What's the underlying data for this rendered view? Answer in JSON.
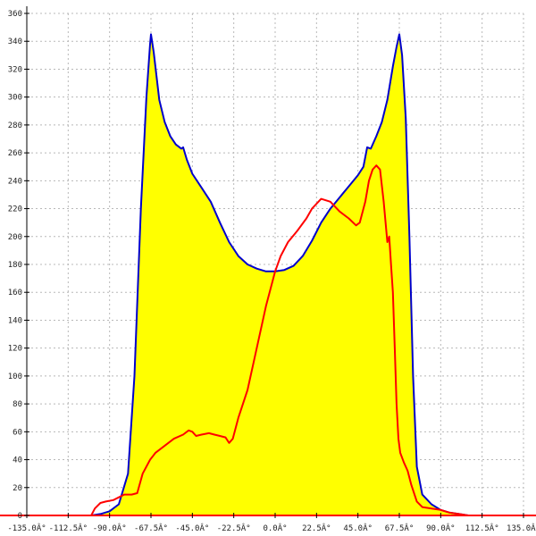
{
  "chart_data": {
    "type": "area",
    "title": "",
    "xlabel": "",
    "ylabel": "",
    "xlim": [
      -135,
      135
    ],
    "ylim": [
      0,
      360
    ],
    "grid": true,
    "x_ticks": [
      -135,
      -112.5,
      -90,
      -67.5,
      -45,
      -22.5,
      0,
      22.5,
      45,
      67.5,
      90,
      112.5,
      135
    ],
    "x_tick_labels": [
      "-135.0Â°",
      "-112.5Â°",
      "-90.0Â°",
      "-67.5Â°",
      "-45.0Â°",
      "-22.5Â°",
      "0.0Â°",
      "22.5Â°",
      "45.0Â°",
      "67.5Â°",
      "90.0Â°",
      "112.5Â°",
      "135.0Â°"
    ],
    "y_ticks": [
      0,
      20,
      40,
      60,
      80,
      100,
      120,
      140,
      160,
      180,
      200,
      220,
      240,
      260,
      280,
      300,
      320,
      340,
      360
    ],
    "y_tick_labels": [
      "0",
      "20",
      "40",
      "60",
      "80",
      "100",
      "120",
      "140",
      "160",
      "180",
      "200",
      "220",
      "240",
      "260",
      "280",
      "300",
      "320",
      "340",
      "360"
    ],
    "colors": {
      "fill": "#ffff00",
      "envelope": "#0000cc",
      "curve": "#ff0000",
      "zero_line": "#ff0000",
      "grid": "#b8b8b8"
    },
    "series": [
      {
        "values": [
          [
            -100,
            0
          ],
          [
            -95,
            1
          ],
          [
            -90,
            3
          ],
          [
            -85,
            8
          ],
          [
            -80,
            30
          ],
          [
            -76.5,
            100
          ],
          [
            -73,
            220
          ],
          [
            -70,
            300
          ],
          [
            -68,
            338
          ],
          [
            -67.5,
            345
          ],
          [
            -66,
            332
          ],
          [
            -63,
            298
          ],
          [
            -60,
            282
          ],
          [
            -57,
            272
          ],
          [
            -54,
            266
          ],
          [
            -51,
            263
          ],
          [
            -50,
            264
          ],
          [
            -48,
            255
          ],
          [
            -45,
            245
          ],
          [
            -40,
            235
          ],
          [
            -35,
            225
          ],
          [
            -30,
            210
          ],
          [
            -25,
            196
          ],
          [
            -20,
            186
          ],
          [
            -15,
            180
          ],
          [
            -10,
            177
          ],
          [
            -5,
            175
          ],
          [
            0,
            175
          ],
          [
            5,
            176
          ],
          [
            10,
            179
          ],
          [
            15,
            186
          ],
          [
            20,
            197
          ],
          [
            25,
            210
          ],
          [
            30,
            220
          ],
          [
            35,
            228
          ],
          [
            40,
            236
          ],
          [
            45,
            244
          ],
          [
            48,
            250
          ],
          [
            50,
            264
          ],
          [
            52,
            263
          ],
          [
            55,
            272
          ],
          [
            58,
            282
          ],
          [
            61,
            298
          ],
          [
            64,
            322
          ],
          [
            66,
            336
          ],
          [
            67.5,
            345
          ],
          [
            69,
            330
          ],
          [
            71,
            285
          ],
          [
            73,
            200
          ],
          [
            75,
            100
          ],
          [
            77,
            35
          ],
          [
            80,
            15
          ],
          [
            85,
            8
          ],
          [
            90,
            4
          ],
          [
            95,
            2
          ],
          [
            100,
            1
          ],
          [
            105,
            0
          ]
        ]
      },
      {
        "values": [
          [
            -100,
            0
          ],
          [
            -98,
            5
          ],
          [
            -95,
            9
          ],
          [
            -92,
            10
          ],
          [
            -88,
            11
          ],
          [
            -85,
            13
          ],
          [
            -82,
            15
          ],
          [
            -78,
            15
          ],
          [
            -75,
            16
          ],
          [
            -72,
            30
          ],
          [
            -68,
            40
          ],
          [
            -65,
            45
          ],
          [
            -60,
            50
          ],
          [
            -55,
            55
          ],
          [
            -50,
            58
          ],
          [
            -47,
            61
          ],
          [
            -45,
            60
          ],
          [
            -43,
            57
          ],
          [
            -40,
            58
          ],
          [
            -36,
            59
          ],
          [
            -33,
            58
          ],
          [
            -30,
            57
          ],
          [
            -27,
            56
          ],
          [
            -25,
            52
          ],
          [
            -23,
            55
          ],
          [
            -20,
            70
          ],
          [
            -15,
            90
          ],
          [
            -10,
            120
          ],
          [
            -5,
            150
          ],
          [
            0,
            175
          ],
          [
            3,
            186
          ],
          [
            7,
            196
          ],
          [
            12,
            204
          ],
          [
            17,
            213
          ],
          [
            20,
            220
          ],
          [
            25,
            227
          ],
          [
            30,
            225
          ],
          [
            35,
            218
          ],
          [
            40,
            213
          ],
          [
            44,
            208
          ],
          [
            46,
            210
          ],
          [
            49,
            225
          ],
          [
            51,
            240
          ],
          [
            53,
            248
          ],
          [
            55,
            251
          ],
          [
            57,
            248
          ],
          [
            59,
            225
          ],
          [
            61,
            196
          ],
          [
            62,
            200
          ],
          [
            63,
            180
          ],
          [
            64,
            160
          ],
          [
            65,
            120
          ],
          [
            66,
            80
          ],
          [
            67,
            55
          ],
          [
            68,
            45
          ],
          [
            70,
            38
          ],
          [
            72,
            32
          ],
          [
            74,
            22
          ],
          [
            77,
            10
          ],
          [
            80,
            6
          ],
          [
            85,
            5
          ],
          [
            90,
            4
          ],
          [
            95,
            2
          ],
          [
            100,
            1
          ],
          [
            105,
            0
          ]
        ]
      }
    ]
  }
}
